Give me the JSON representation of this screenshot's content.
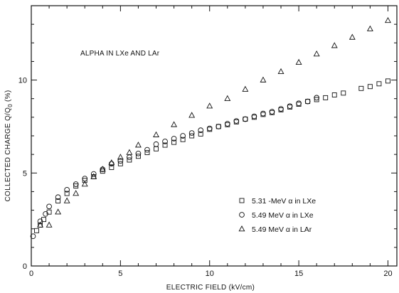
{
  "chart_data": {
    "type": "scatter",
    "title": "",
    "annotation": "ALPHA IN LXe AND LAr",
    "xlabel": "ELECTRIC FIELD (kV/cm)",
    "ylabel_parts": [
      "COLLECTED CHARGE Q/Q",
      "0",
      " (%)"
    ],
    "xlim": [
      0,
      20.5
    ],
    "ylim": [
      0,
      14
    ],
    "xticks": [
      0,
      5,
      10,
      15,
      20
    ],
    "yticks": [
      0,
      5,
      10
    ],
    "grid": false,
    "legend_position": "lower-right",
    "series": [
      {
        "name": "5.31 -MeV α in LXe",
        "marker": "square",
        "x": [
          0.3,
          0.5,
          0.7,
          1.0,
          1.5,
          2.0,
          2.5,
          3.0,
          3.5,
          4.0,
          4.5,
          5.0,
          5.5,
          6.0,
          6.5,
          7.0,
          7.5,
          8.0,
          8.5,
          9.0,
          9.5,
          10.0,
          10.5,
          11.0,
          11.5,
          12.0,
          12.5,
          13.0,
          13.5,
          14.0,
          14.5,
          15.0,
          15.5,
          16.0,
          16.5,
          17.0,
          17.5,
          18.5,
          19.0,
          19.5,
          20.0
        ],
        "y": [
          1.9,
          2.2,
          2.5,
          2.9,
          3.5,
          3.9,
          4.3,
          4.6,
          4.8,
          5.1,
          5.3,
          5.5,
          5.7,
          5.9,
          6.1,
          6.3,
          6.5,
          6.65,
          6.8,
          7.0,
          7.1,
          7.35,
          7.5,
          7.6,
          7.75,
          7.9,
          8.0,
          8.15,
          8.25,
          8.4,
          8.55,
          8.7,
          8.85,
          8.95,
          9.05,
          9.2,
          9.3,
          9.55,
          9.65,
          9.8,
          9.95
        ]
      },
      {
        "name": "5.49 MeV α in LXe",
        "marker": "circle",
        "x": [
          0.1,
          0.5,
          0.8,
          1.0,
          1.5,
          2.0,
          2.5,
          3.0,
          3.5,
          4.0,
          4.5,
          5.0,
          5.5,
          6.0,
          6.5,
          7.0,
          7.5,
          8.0,
          8.5,
          9.0,
          9.5,
          10.0,
          10.5,
          11.0,
          11.5,
          12.0,
          12.5,
          13.0,
          13.5,
          14.0,
          14.5,
          15.0,
          15.5,
          16.0
        ],
        "y": [
          1.6,
          2.4,
          2.8,
          3.2,
          3.7,
          4.1,
          4.4,
          4.7,
          4.95,
          5.2,
          5.5,
          5.65,
          5.85,
          6.05,
          6.25,
          6.55,
          6.7,
          6.85,
          7.0,
          7.15,
          7.3,
          7.4,
          7.5,
          7.65,
          7.8,
          7.9,
          8.05,
          8.2,
          8.3,
          8.45,
          8.6,
          8.75,
          8.85,
          9.05
        ]
      },
      {
        "name": "5.49 MeV α in LAr",
        "marker": "triangle",
        "x": [
          0.5,
          1.0,
          1.5,
          2.0,
          2.5,
          3.0,
          3.5,
          4.0,
          4.5,
          5.0,
          5.5,
          6.0,
          7.0,
          8.0,
          9.0,
          10.0,
          11.0,
          12.0,
          13.0,
          14.0,
          15.0,
          16.0,
          17.0,
          18.0,
          19.0,
          20.0
        ],
        "y": [
          2.2,
          2.2,
          2.9,
          3.5,
          3.9,
          4.4,
          4.8,
          5.2,
          5.55,
          5.85,
          6.1,
          6.5,
          7.05,
          7.6,
          8.1,
          8.6,
          9.0,
          9.5,
          10.0,
          10.45,
          10.95,
          11.4,
          11.85,
          12.3,
          12.75,
          13.2
        ]
      }
    ]
  }
}
